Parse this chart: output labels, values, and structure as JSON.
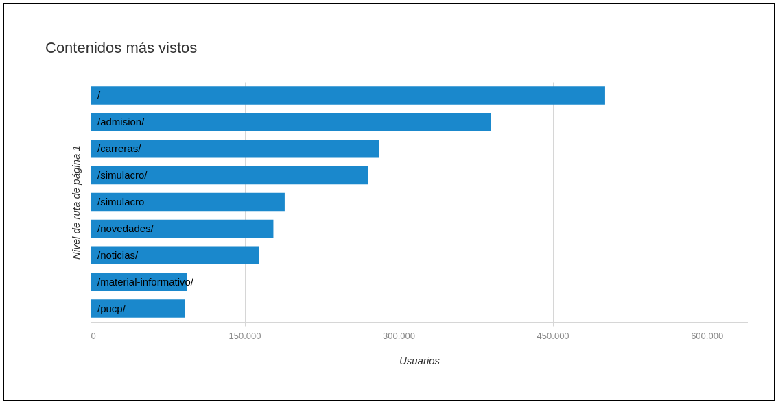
{
  "chart_data": {
    "type": "bar",
    "orientation": "horizontal",
    "title": "Contenidos más vistos",
    "xlabel": "Usuarios",
    "ylabel": "Nivel de ruta de página 1",
    "categories": [
      "/",
      "/admision/",
      "/carreras/",
      "/simulacro/",
      "/simulacro",
      "/novedades/",
      "/noticias/",
      "/material-informativo/",
      "/pucp/"
    ],
    "values": [
      501000,
      390000,
      281000,
      270000,
      189000,
      178000,
      164000,
      94000,
      92000
    ],
    "color": "#1a88cc",
    "xlim": [
      0,
      640000
    ],
    "xticks": [
      {
        "value": 0,
        "label": "0"
      },
      {
        "value": 150000,
        "label": "150.000"
      },
      {
        "value": 300000,
        "label": "300.000"
      },
      {
        "value": 450000,
        "label": "450.000"
      },
      {
        "value": 600000,
        "label": "600.000"
      }
    ],
    "grid": "x"
  }
}
